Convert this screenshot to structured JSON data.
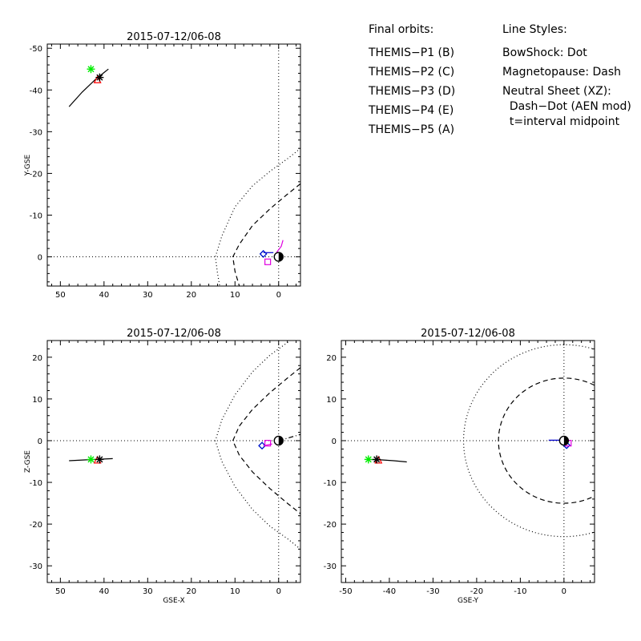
{
  "legend": {
    "orbits_title": "Final orbits:",
    "orbits": [
      {
        "label": "THEMIS−P1 (B)",
        "color": "#ff0000"
      },
      {
        "label": "THEMIS−P2 (C)",
        "color": "#00ee00"
      },
      {
        "label": "THEMIS−P3 (D)",
        "color": "#00e5e5"
      },
      {
        "label": "THEMIS−P4 (E)",
        "color": "#0000cc"
      },
      {
        "label": "THEMIS−P5 (A)",
        "color": "#e000e0"
      }
    ],
    "styles_title": "Line Styles:",
    "styles": [
      "BowShock: Dot",
      "Magnetopause: Dash",
      "Neutral Sheet (XZ):",
      "  Dash−Dot (AEN mod)",
      "  t=interval midpoint"
    ]
  },
  "chart_data": [
    {
      "type": "line",
      "title": "2015-07-12/06-08",
      "xlabel": "",
      "ylabel": "Y-GSE",
      "xlim": [
        53,
        -5
      ],
      "ylim": [
        7,
        -51
      ],
      "xticks": [
        50,
        40,
        30,
        20,
        10,
        0
      ],
      "yticks": [
        -50,
        -40,
        -30,
        -20,
        -10,
        0
      ],
      "series": [
        {
          "style": "solid",
          "color": "#000000",
          "x": [
            48,
            45,
            42,
            39
          ],
          "y": [
            -36,
            -39.5,
            -42.5,
            -45
          ]
        },
        {
          "style": "dotted",
          "color": "#000000",
          "x": [
            -5,
            -2,
            2,
            6,
            10,
            13,
            14.5,
            14,
            13.5
          ],
          "y": [
            -26,
            -23.5,
            -20.5,
            -17,
            -12,
            -5,
            0,
            4,
            7
          ]
        },
        {
          "style": "dashed",
          "color": "#000000",
          "x": [
            -5,
            -2,
            2,
            6,
            9,
            10.5,
            10,
            9
          ],
          "y": [
            -17.5,
            -15,
            -11.5,
            -7.5,
            -3,
            0,
            3.5,
            7
          ]
        },
        {
          "style": "solid",
          "color": "#e000e0",
          "x": [
            0.5,
            -0.6,
            -1
          ],
          "y": [
            -1,
            -2.5,
            -4
          ]
        },
        {
          "style": "solid",
          "color": "#0000cc",
          "x": [
            3.5,
            1.2
          ],
          "y": [
            -1,
            -1
          ]
        }
      ],
      "markers": [
        {
          "symbol": "star",
          "color": "#00ee00",
          "x": 43,
          "y": -45
        },
        {
          "symbol": "triangle",
          "color": "#ff0000",
          "x": 41.5,
          "y": -42.5
        },
        {
          "symbol": "star",
          "color": "#000000",
          "x": 41,
          "y": -43
        },
        {
          "symbol": "diamond",
          "color": "#00e5e5",
          "x": 3.5,
          "y": -0.7
        },
        {
          "symbol": "diamond",
          "color": "#0000cc",
          "x": 3.5,
          "y": -0.7
        },
        {
          "symbol": "square",
          "color": "#e000e0",
          "x": 2.5,
          "y": 1.2
        },
        {
          "symbol": "earth",
          "color": "#000000",
          "x": 0,
          "y": 0
        }
      ]
    },
    {
      "type": "line",
      "title": "2015-07-12/06-08",
      "xlabel": "GSE-X",
      "ylabel": "Z-GSE",
      "xlim": [
        53,
        -5
      ],
      "ylim": [
        -34,
        24
      ],
      "xticks": [
        50,
        40,
        30,
        20,
        10,
        0
      ],
      "yticks": [
        20,
        10,
        0,
        -10,
        -20,
        -30
      ],
      "series": [
        {
          "style": "solid",
          "color": "#000000",
          "x": [
            48,
            44,
            40,
            38
          ],
          "y": [
            -4.8,
            -4.6,
            -4.4,
            -4.3
          ]
        },
        {
          "style": "dotted",
          "color": "#000000",
          "x": [
            -5,
            -2,
            2,
            6,
            10,
            13,
            14.5,
            13,
            10,
            6,
            2,
            -2,
            -5
          ],
          "y": [
            26,
            23.5,
            20.5,
            16.5,
            11,
            5,
            0,
            -5,
            -11,
            -16.5,
            -20.5,
            -23.5,
            -26
          ]
        },
        {
          "style": "dashed",
          "color": "#000000",
          "x": [
            -5,
            -2,
            2,
            6,
            9,
            10.5,
            9,
            6,
            2,
            -2,
            -5
          ],
          "y": [
            17.5,
            15,
            11.5,
            7.5,
            3.5,
            0,
            -3.5,
            -7.5,
            -11.5,
            -15,
            -17.5
          ]
        },
        {
          "style": "dashdot",
          "color": "#000000",
          "x": [
            0,
            -5
          ],
          "y": [
            0,
            1.5
          ]
        },
        {
          "style": "solid",
          "color": "#e000e0",
          "x": [
            3.5,
            1.5
          ],
          "y": [
            -1.2,
            -0.8
          ]
        }
      ],
      "markers": [
        {
          "symbol": "star",
          "color": "#00ee00",
          "x": 43,
          "y": -4.5
        },
        {
          "symbol": "triangle",
          "color": "#ff0000",
          "x": 41.5,
          "y": -4.6
        },
        {
          "symbol": "star",
          "color": "#000000",
          "x": 41,
          "y": -4.5
        },
        {
          "symbol": "diamond",
          "color": "#00e5e5",
          "x": 3.8,
          "y": -1.2
        },
        {
          "symbol": "diamond",
          "color": "#0000cc",
          "x": 3.8,
          "y": -1.2
        },
        {
          "symbol": "square",
          "color": "#e000e0",
          "x": 2.5,
          "y": -0.6
        },
        {
          "symbol": "earth",
          "color": "#000000",
          "x": 0,
          "y": 0
        }
      ]
    },
    {
      "type": "line",
      "title": "2015-07-12/06-08",
      "xlabel": "GSE-Y",
      "ylabel": "",
      "xlim": [
        -51,
        7
      ],
      "ylim": [
        -34,
        24
      ],
      "xticks": [
        -50,
        -40,
        -30,
        -20,
        -10,
        0
      ],
      "yticks": [
        20,
        10,
        0,
        -10,
        -20,
        -30
      ],
      "series": [
        {
          "style": "solid",
          "color": "#000000",
          "x": [
            -45,
            -42,
            -39,
            -36
          ],
          "y": [
            -4.5,
            -4.6,
            -4.8,
            -5.1
          ]
        },
        {
          "style": "circle-dotted",
          "color": "#000000",
          "r": 23
        },
        {
          "style": "circle-dashed",
          "color": "#000000",
          "r": 15
        },
        {
          "style": "solid",
          "color": "#0000cc",
          "x": [
            -3.5,
            -0.5
          ],
          "y": [
            0.1,
            0.1
          ]
        },
        {
          "style": "solid",
          "color": "#e000e0",
          "x": [
            0,
            0.8
          ],
          "y": [
            -0.4,
            -1
          ]
        }
      ],
      "markers": [
        {
          "symbol": "star",
          "color": "#00ee00",
          "x": -44.8,
          "y": -4.5
        },
        {
          "symbol": "triangle",
          "color": "#ff0000",
          "x": -42.5,
          "y": -4.6
        },
        {
          "symbol": "star",
          "color": "#000000",
          "x": -42.9,
          "y": -4.5
        },
        {
          "symbol": "diamond",
          "color": "#00e5e5",
          "x": 0.6,
          "y": -1.1
        },
        {
          "symbol": "diamond",
          "color": "#0000cc",
          "x": 0.6,
          "y": -1.1
        },
        {
          "symbol": "square",
          "color": "#e000e0",
          "x": 1,
          "y": -0.6
        },
        {
          "symbol": "earth",
          "color": "#000000",
          "x": 0,
          "y": 0
        }
      ]
    }
  ]
}
